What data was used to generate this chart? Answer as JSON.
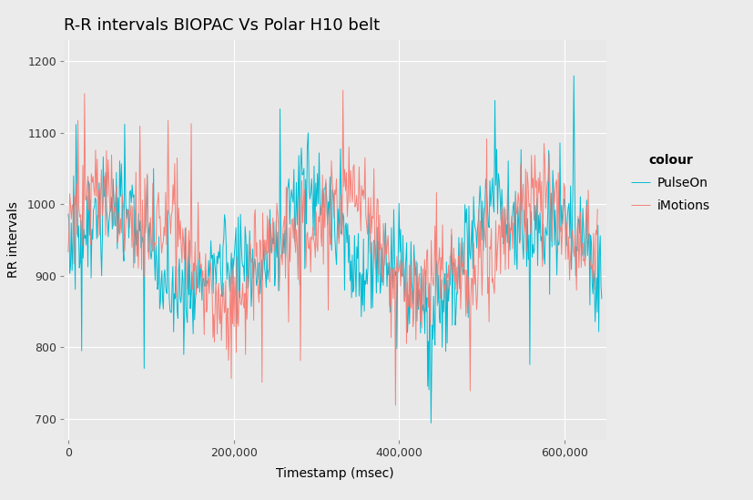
{
  "title": "R-R intervals BIOPAC Vs Polar H10 belt",
  "xlabel": "Timestamp (msec)",
  "ylabel": "RR intervals",
  "legend_title": "colour",
  "legend_labels": [
    "iMotions",
    "PulseOn"
  ],
  "colors": {
    "iMotions": "#F8766D",
    "PulseOn": "#00BCD4"
  },
  "xlim": [
    -5000,
    650000
  ],
  "ylim": [
    670,
    1230
  ],
  "yticks": [
    700,
    800,
    900,
    1000,
    1100,
    1200
  ],
  "xticks": [
    0,
    200000,
    400000,
    600000
  ],
  "xtick_labels": [
    "0",
    "200,000",
    "400,000",
    "600,000"
  ],
  "background_color": "#EBEBEB",
  "panel_background": "#E8E8E8",
  "grid_color": "#FFFFFF",
  "title_fontsize": 13,
  "axis_label_fontsize": 10,
  "tick_fontsize": 9,
  "legend_fontsize": 10,
  "seed": 12345
}
